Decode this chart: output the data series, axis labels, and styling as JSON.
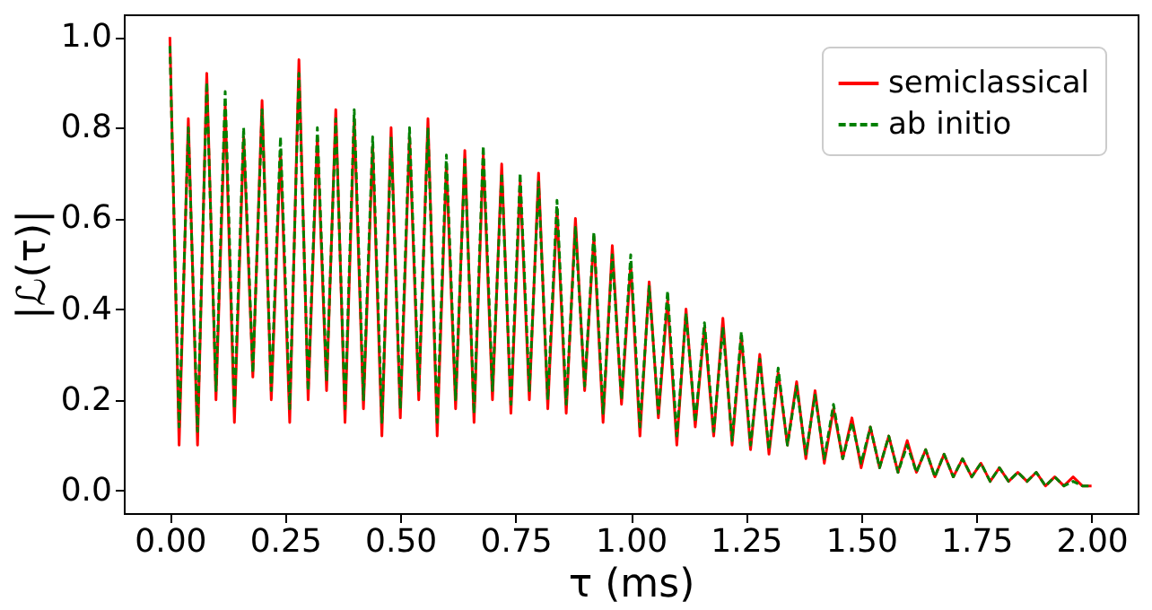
{
  "chart_data": {
    "type": "line",
    "xlabel": "τ (ms)",
    "ylabel": "|ℒ(τ)|",
    "x": [
      0,
      0.02,
      0.04,
      0.06,
      0.08,
      0.1,
      0.12,
      0.14,
      0.16,
      0.18,
      0.2,
      0.22,
      0.24,
      0.26,
      0.28,
      0.3,
      0.32,
      0.34,
      0.36,
      0.38,
      0.4,
      0.42,
      0.44,
      0.46,
      0.48,
      0.5,
      0.52,
      0.54,
      0.56,
      0.58,
      0.6,
      0.62,
      0.64,
      0.66,
      0.68,
      0.7,
      0.72,
      0.74,
      0.76,
      0.78,
      0.8,
      0.82,
      0.84,
      0.86,
      0.88,
      0.9,
      0.92,
      0.94,
      0.96,
      0.98,
      1.0,
      1.02,
      1.04,
      1.06,
      1.08,
      1.1,
      1.12,
      1.14,
      1.16,
      1.18,
      1.2,
      1.22,
      1.24,
      1.26,
      1.28,
      1.3,
      1.32,
      1.34,
      1.36,
      1.38,
      1.4,
      1.42,
      1.44,
      1.46,
      1.48,
      1.5,
      1.52,
      1.54,
      1.56,
      1.58,
      1.6,
      1.62,
      1.64,
      1.66,
      1.68,
      1.7,
      1.72,
      1.74,
      1.76,
      1.78,
      1.8,
      1.82,
      1.84,
      1.86,
      1.88,
      1.9,
      1.92,
      1.94,
      1.96,
      1.98,
      2.0
    ],
    "series": [
      {
        "name": "semiclassical",
        "color": "#ff0000",
        "line_style": "solid",
        "values": [
          1.0,
          0.1,
          0.82,
          0.1,
          0.92,
          0.2,
          0.85,
          0.15,
          0.78,
          0.25,
          0.86,
          0.2,
          0.75,
          0.15,
          0.95,
          0.2,
          0.78,
          0.22,
          0.84,
          0.15,
          0.82,
          0.18,
          0.76,
          0.12,
          0.8,
          0.16,
          0.78,
          0.2,
          0.82,
          0.12,
          0.72,
          0.18,
          0.75,
          0.15,
          0.74,
          0.2,
          0.72,
          0.17,
          0.68,
          0.2,
          0.7,
          0.18,
          0.62,
          0.17,
          0.6,
          0.22,
          0.56,
          0.15,
          0.54,
          0.19,
          0.5,
          0.12,
          0.46,
          0.16,
          0.42,
          0.1,
          0.4,
          0.14,
          0.36,
          0.12,
          0.38,
          0.1,
          0.34,
          0.09,
          0.3,
          0.08,
          0.26,
          0.1,
          0.24,
          0.07,
          0.22,
          0.06,
          0.18,
          0.07,
          0.16,
          0.05,
          0.14,
          0.05,
          0.12,
          0.04,
          0.11,
          0.04,
          0.09,
          0.03,
          0.08,
          0.03,
          0.07,
          0.03,
          0.06,
          0.02,
          0.05,
          0.02,
          0.04,
          0.02,
          0.04,
          0.01,
          0.03,
          0.01,
          0.03,
          0.01,
          0.01
        ]
      },
      {
        "name": "ab initio",
        "color": "#008000",
        "line_style": "dashed",
        "values": [
          0.98,
          0.14,
          0.8,
          0.13,
          0.9,
          0.22,
          0.88,
          0.18,
          0.8,
          0.26,
          0.84,
          0.22,
          0.78,
          0.18,
          0.92,
          0.22,
          0.8,
          0.24,
          0.82,
          0.18,
          0.84,
          0.2,
          0.78,
          0.15,
          0.78,
          0.18,
          0.8,
          0.22,
          0.8,
          0.15,
          0.74,
          0.2,
          0.73,
          0.17,
          0.76,
          0.22,
          0.7,
          0.19,
          0.7,
          0.22,
          0.68,
          0.2,
          0.64,
          0.19,
          0.58,
          0.23,
          0.57,
          0.17,
          0.52,
          0.2,
          0.52,
          0.14,
          0.45,
          0.17,
          0.44,
          0.12,
          0.39,
          0.15,
          0.37,
          0.13,
          0.36,
          0.11,
          0.35,
          0.1,
          0.29,
          0.09,
          0.27,
          0.1,
          0.23,
          0.08,
          0.21,
          0.07,
          0.19,
          0.07,
          0.15,
          0.06,
          0.14,
          0.05,
          0.12,
          0.04,
          0.1,
          0.04,
          0.09,
          0.03,
          0.08,
          0.03,
          0.07,
          0.03,
          0.06,
          0.02,
          0.05,
          0.02,
          0.04,
          0.02,
          0.04,
          0.01,
          0.03,
          0.01,
          0.02,
          0.01,
          0.01
        ]
      }
    ],
    "xlim": [
      -0.1,
      2.1
    ],
    "ylim": [
      -0.05,
      1.05
    ],
    "xticks": [
      {
        "value": 0,
        "label": "0.00"
      },
      {
        "value": 0.25,
        "label": "0.25"
      },
      {
        "value": 0.5,
        "label": "0.50"
      },
      {
        "value": 0.75,
        "label": "0.75"
      },
      {
        "value": 1,
        "label": "1.00"
      },
      {
        "value": 1.25,
        "label": "1.25"
      },
      {
        "value": 1.5,
        "label": "1.50"
      },
      {
        "value": 1.75,
        "label": "1.75"
      },
      {
        "value": 2,
        "label": "2.00"
      }
    ],
    "yticks": [
      {
        "value": 0,
        "label": "0.0"
      },
      {
        "value": 0.2,
        "label": "0.2"
      },
      {
        "value": 0.4,
        "label": "0.4"
      },
      {
        "value": 0.6,
        "label": "0.6"
      },
      {
        "value": 0.8,
        "label": "0.8"
      },
      {
        "value": 1,
        "label": "1.0"
      }
    ],
    "grid": false,
    "legend": "top right"
  }
}
